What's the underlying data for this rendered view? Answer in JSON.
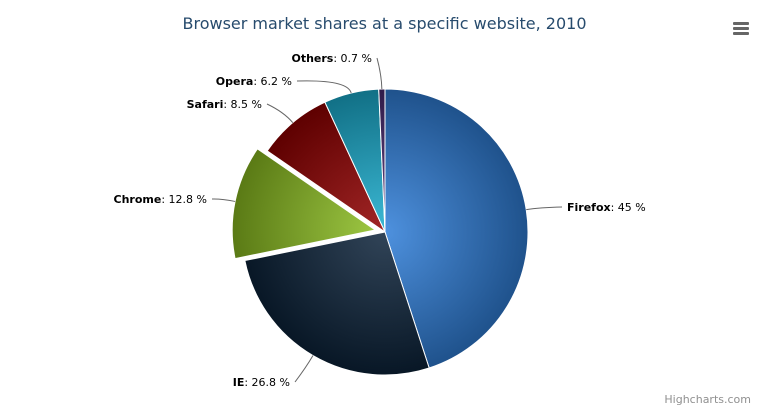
{
  "chart_data": {
    "type": "pie",
    "title": "Browser market shares at a specific website, 2010",
    "unit": "%",
    "slices": [
      {
        "name": "Firefox",
        "value": 45.0,
        "color": "#2f7ed8",
        "sliced": false
      },
      {
        "name": "IE",
        "value": 26.8,
        "color": "#0d233a",
        "sliced": false
      },
      {
        "name": "Chrome",
        "value": 12.8,
        "color": "#8bbc21",
        "sliced": true
      },
      {
        "name": "Safari",
        "value": 8.5,
        "color": "#910000",
        "sliced": false
      },
      {
        "name": "Opera",
        "value": 6.2,
        "color": "#1aadce",
        "sliced": false
      },
      {
        "name": "Others",
        "value": 0.7,
        "color": "#492970",
        "sliced": false
      }
    ]
  },
  "credits": "Highcharts.com",
  "menu_icon": "hamburger-menu-icon"
}
